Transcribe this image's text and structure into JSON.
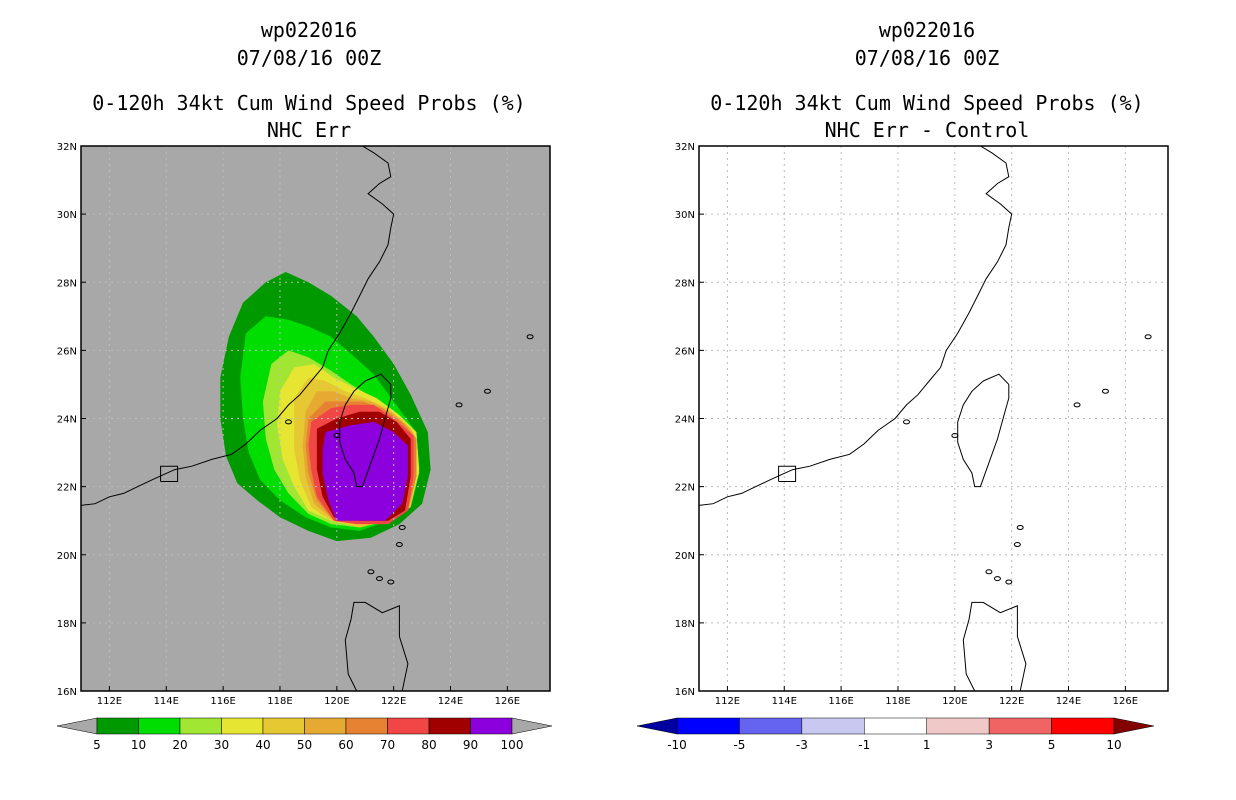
{
  "left_panel": {
    "title_storm": "wp022016",
    "title_date": "07/08/16 00Z",
    "title_product": "0-120h 34kt Cum Wind Speed Probs (%)",
    "title_case": "NHC Err"
  },
  "right_panel": {
    "title_storm": "wp022016",
    "title_date": "07/08/16 00Z",
    "title_product": "0-120h 34kt Cum Wind Speed Probs (%)",
    "title_case": "NHC Err - Control"
  },
  "chart_data": [
    {
      "type": "heatmap",
      "title": "0-120h 34kt Cum Wind Speed Probs (%)",
      "subtitle": "NHC Err",
      "background_color": "#a8a8a8",
      "x_ticks": [
        "112E",
        "114E",
        "116E",
        "118E",
        "120E",
        "122E",
        "124E",
        "126E"
      ],
      "y_ticks": [
        "16N",
        "18N",
        "20N",
        "22N",
        "24N",
        "26N",
        "28N",
        "30N",
        "32N"
      ],
      "xlim": [
        111,
        127.5
      ],
      "ylim": [
        16,
        32
      ],
      "grid": true,
      "colorbar": {
        "labels": [
          "5",
          "10",
          "20",
          "30",
          "40",
          "50",
          "60",
          "70",
          "80",
          "90",
          "100"
        ],
        "colors": [
          "#009900",
          "#00dd00",
          "#a0e632",
          "#e6e632",
          "#e6c832",
          "#e6aa32",
          "#e68232",
          "#f04646",
          "#a00000",
          "#8b00dc"
        ],
        "under_color": "#a8a8a8",
        "over_color": "#a8a8a8"
      },
      "probability_contours": [
        {
          "level": 5,
          "color": "#009900",
          "points": [
            [
              117.5,
              28.0
            ],
            [
              118.2,
              28.3
            ],
            [
              119.0,
              28.0
            ],
            [
              119.8,
              27.6
            ],
            [
              120.7,
              27.0
            ],
            [
              121.3,
              26.4
            ],
            [
              122.0,
              25.6
            ],
            [
              122.6,
              24.7
            ],
            [
              123.2,
              23.6
            ],
            [
              123.3,
              22.5
            ],
            [
              123.0,
              21.5
            ],
            [
              122.2,
              20.9
            ],
            [
              121.2,
              20.5
            ],
            [
              120.0,
              20.4
            ],
            [
              119.0,
              20.7
            ],
            [
              118.0,
              21.1
            ],
            [
              117.2,
              21.6
            ],
            [
              116.5,
              22.1
            ],
            [
              116.1,
              22.9
            ],
            [
              115.9,
              24.0
            ],
            [
              115.9,
              25.2
            ],
            [
              116.2,
              26.4
            ],
            [
              116.7,
              27.4
            ]
          ]
        },
        {
          "level": 10,
          "color": "#00dd00",
          "points": [
            [
              116.8,
              26.5
            ],
            [
              117.5,
              27.0
            ],
            [
              118.3,
              26.9
            ],
            [
              119.0,
              26.7
            ],
            [
              119.8,
              26.4
            ],
            [
              120.5,
              25.9
            ],
            [
              121.3,
              25.3
            ],
            [
              122.0,
              24.5
            ],
            [
              122.8,
              23.6
            ],
            [
              122.9,
              22.4
            ],
            [
              122.6,
              21.5
            ],
            [
              121.8,
              21.0
            ],
            [
              120.8,
              20.7
            ],
            [
              119.8,
              20.8
            ],
            [
              118.9,
              21.1
            ],
            [
              118.0,
              21.6
            ],
            [
              117.3,
              22.2
            ],
            [
              116.9,
              23.0
            ],
            [
              116.7,
              24.0
            ],
            [
              116.6,
              25.2
            ]
          ]
        },
        {
          "level": 20,
          "color": "#a0e632",
          "points": [
            [
              117.7,
              25.6
            ],
            [
              118.3,
              26.0
            ],
            [
              119.0,
              25.8
            ],
            [
              119.8,
              25.4
            ],
            [
              120.5,
              25.0
            ],
            [
              121.3,
              24.6
            ],
            [
              122.0,
              24.2
            ],
            [
              122.8,
              23.6
            ],
            [
              122.9,
              22.4
            ],
            [
              122.6,
              21.4
            ],
            [
              121.8,
              21.0
            ],
            [
              120.8,
              20.8
            ],
            [
              119.8,
              20.9
            ],
            [
              119.0,
              21.2
            ],
            [
              118.3,
              21.8
            ],
            [
              117.8,
              22.5
            ],
            [
              117.5,
              23.4
            ],
            [
              117.4,
              24.5
            ]
          ]
        },
        {
          "level": 30,
          "color": "#e6e632",
          "points": [
            [
              118.0,
              24.8
            ],
            [
              118.5,
              25.5
            ],
            [
              119.2,
              25.6
            ],
            [
              119.9,
              25.2
            ],
            [
              120.6,
              24.9
            ],
            [
              121.4,
              24.6
            ],
            [
              122.2,
              24.1
            ],
            [
              122.8,
              23.6
            ],
            [
              122.9,
              22.5
            ],
            [
              122.6,
              21.5
            ],
            [
              121.8,
              21.0
            ],
            [
              120.8,
              20.8
            ],
            [
              119.8,
              21.0
            ],
            [
              119.0,
              21.3
            ],
            [
              118.5,
              22.0
            ],
            [
              118.1,
              22.8
            ],
            [
              117.9,
              23.8
            ]
          ]
        },
        {
          "level": 40,
          "color": "#e6c832",
          "points": [
            [
              118.5,
              24.6
            ],
            [
              119.0,
              25.2
            ],
            [
              119.6,
              25.1
            ],
            [
              120.3,
              24.8
            ],
            [
              121.0,
              24.6
            ],
            [
              121.8,
              24.3
            ],
            [
              122.5,
              23.8
            ],
            [
              122.8,
              23.4
            ],
            [
              122.8,
              22.3
            ],
            [
              122.6,
              21.4
            ],
            [
              121.8,
              21.0
            ],
            [
              120.8,
              20.8
            ],
            [
              119.8,
              21.0
            ],
            [
              119.1,
              21.4
            ],
            [
              118.7,
              22.2
            ],
            [
              118.5,
              23.1
            ]
          ]
        },
        {
          "level": 50,
          "color": "#e6aa32",
          "points": [
            [
              118.9,
              24.2
            ],
            [
              119.3,
              24.8
            ],
            [
              119.9,
              24.8
            ],
            [
              120.5,
              24.6
            ],
            [
              121.2,
              24.5
            ],
            [
              121.9,
              24.2
            ],
            [
              122.6,
              23.7
            ],
            [
              122.8,
              23.4
            ],
            [
              122.8,
              22.3
            ],
            [
              122.5,
              21.3
            ],
            [
              121.8,
              21.0
            ],
            [
              120.8,
              20.9
            ],
            [
              119.9,
              21.0
            ],
            [
              119.2,
              21.5
            ],
            [
              118.9,
              22.3
            ],
            [
              118.8,
              23.2
            ]
          ]
        },
        {
          "level": 60,
          "color": "#e68232",
          "points": [
            [
              119.0,
              24.0
            ],
            [
              119.6,
              24.5
            ],
            [
              120.2,
              24.5
            ],
            [
              120.9,
              24.5
            ],
            [
              121.6,
              24.3
            ],
            [
              122.3,
              23.9
            ],
            [
              122.8,
              23.4
            ],
            [
              122.8,
              22.3
            ],
            [
              122.5,
              21.3
            ],
            [
              121.8,
              20.9
            ],
            [
              120.7,
              20.9
            ],
            [
              119.9,
              21.0
            ],
            [
              119.3,
              21.6
            ],
            [
              119.0,
              22.4
            ],
            [
              118.9,
              23.2
            ]
          ]
        },
        {
          "level": 70,
          "color": "#f04646",
          "points": [
            [
              119.1,
              23.9
            ],
            [
              119.8,
              24.3
            ],
            [
              120.5,
              24.4
            ],
            [
              121.3,
              24.4
            ],
            [
              122.0,
              24.0
            ],
            [
              122.7,
              23.5
            ],
            [
              122.7,
              22.3
            ],
            [
              122.5,
              21.3
            ],
            [
              121.8,
              20.9
            ],
            [
              120.7,
              20.9
            ],
            [
              119.9,
              21.0
            ],
            [
              119.3,
              21.7
            ],
            [
              119.1,
              22.5
            ],
            [
              119.0,
              23.2
            ]
          ]
        },
        {
          "level": 80,
          "color": "#a00000",
          "points": [
            [
              119.3,
              23.7
            ],
            [
              120.0,
              24.0
            ],
            [
              120.8,
              24.2
            ],
            [
              121.5,
              24.2
            ],
            [
              122.1,
              23.9
            ],
            [
              122.6,
              23.4
            ],
            [
              122.6,
              22.3
            ],
            [
              122.4,
              21.3
            ],
            [
              121.8,
              21.0
            ],
            [
              120.8,
              21.0
            ],
            [
              119.9,
              21.1
            ],
            [
              119.5,
              21.7
            ],
            [
              119.3,
              22.5
            ],
            [
              119.3,
              23.2
            ]
          ]
        },
        {
          "level": 90,
          "color": "#8b00dc",
          "points": [
            [
              119.6,
              23.6
            ],
            [
              120.5,
              23.8
            ],
            [
              121.3,
              23.9
            ],
            [
              122.0,
              23.6
            ],
            [
              122.5,
              23.2
            ],
            [
              122.5,
              22.3
            ],
            [
              122.3,
              21.5
            ],
            [
              121.7,
              21.0
            ],
            [
              120.8,
              21.0
            ],
            [
              120.0,
              21.0
            ],
            [
              119.7,
              21.6
            ],
            [
              119.5,
              22.4
            ],
            [
              119.5,
              23.1
            ]
          ]
        }
      ]
    },
    {
      "type": "heatmap",
      "title": "0-120h 34kt Cum Wind Speed Probs (%)",
      "subtitle": "NHC Err - Control",
      "background_color": "#ffffff",
      "x_ticks": [
        "112E",
        "114E",
        "116E",
        "118E",
        "120E",
        "122E",
        "124E",
        "126E"
      ],
      "y_ticks": [
        "16N",
        "18N",
        "20N",
        "22N",
        "24N",
        "26N",
        "28N",
        "30N",
        "32N"
      ],
      "xlim": [
        111,
        127.5
      ],
      "ylim": [
        16,
        32
      ],
      "grid": true,
      "colorbar": {
        "labels": [
          "-10",
          "-5",
          "-3",
          "-1",
          "1",
          "3",
          "5",
          "10"
        ],
        "colors": [
          "#0000ff",
          "#6464f0",
          "#c8c8f0",
          "#ffffff",
          "#f0c8c8",
          "#f06464",
          "#ff0000"
        ],
        "under_color": "#0000a0",
        "over_color": "#820000"
      },
      "probability_contours": []
    }
  ]
}
